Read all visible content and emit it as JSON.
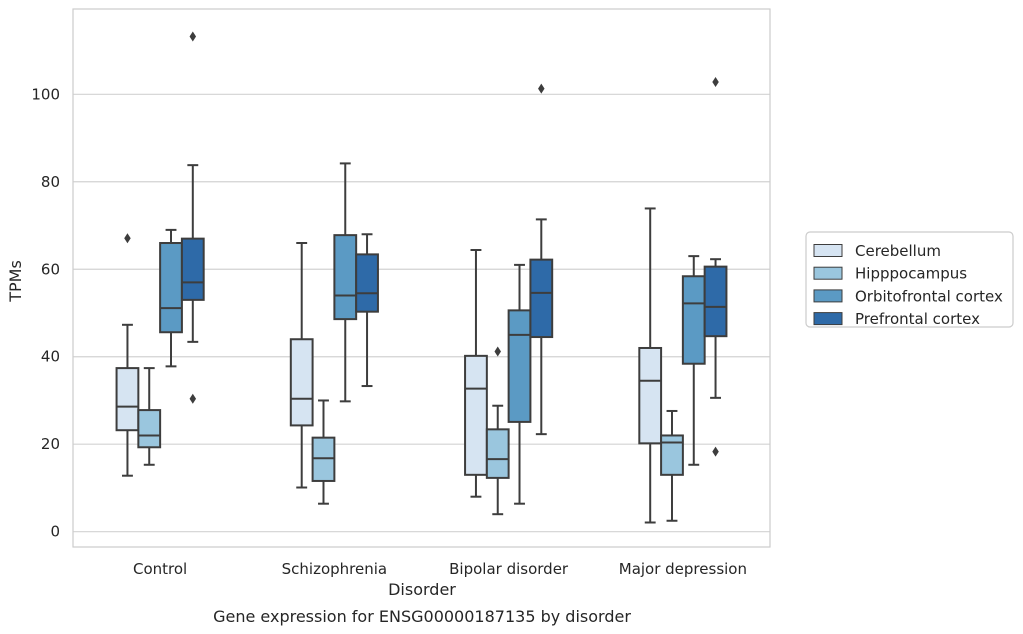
{
  "chart_data": {
    "type": "box",
    "title": "",
    "caption": "Gene expression for ENSG00000187135 by disorder",
    "xlabel": "Disorder",
    "ylabel": "TPMs",
    "ylim": [
      -3.5,
      119.5
    ],
    "yticks": [
      0,
      20,
      40,
      60,
      80,
      100
    ],
    "grid": "horizontal",
    "legend_position": "right-center",
    "categories": [
      "Control",
      "Schizophrenia",
      "Bipolar disorder",
      "Major depression"
    ],
    "series": [
      {
        "name": "Cerebellum",
        "color": "#d6e4f2",
        "boxes": [
          {
            "whisker_low": 12.8,
            "q1": 23.2,
            "median": 28.6,
            "q3": 37.4,
            "whisker_high": 47.3,
            "outliers": [
              67.1
            ]
          },
          {
            "whisker_low": 10.1,
            "q1": 24.3,
            "median": 30.4,
            "q3": 44.0,
            "whisker_high": 66.0,
            "outliers": []
          },
          {
            "whisker_low": 8.0,
            "q1": 13.0,
            "median": 32.7,
            "q3": 40.2,
            "whisker_high": 64.4,
            "outliers": []
          },
          {
            "whisker_low": 2.1,
            "q1": 20.2,
            "median": 34.5,
            "q3": 42.0,
            "whisker_high": 73.9,
            "outliers": []
          }
        ]
      },
      {
        "name": "Hipppocampus",
        "color": "#9ac6de",
        "boxes": [
          {
            "whisker_low": 15.3,
            "q1": 19.3,
            "median": 22.0,
            "q3": 27.8,
            "whisker_high": 37.4,
            "outliers": []
          },
          {
            "whisker_low": 6.4,
            "q1": 11.6,
            "median": 16.8,
            "q3": 21.5,
            "whisker_high": 30.0,
            "outliers": []
          },
          {
            "whisker_low": 4.0,
            "q1": 12.3,
            "median": 16.6,
            "q3": 23.4,
            "whisker_high": 28.8,
            "outliers": [
              41.2
            ]
          },
          {
            "whisker_low": 2.5,
            "q1": 13.0,
            "median": 20.4,
            "q3": 22.0,
            "whisker_high": 27.6,
            "outliers": []
          }
        ]
      },
      {
        "name": "Orbitofrontal cortex",
        "color": "#5b9ac4",
        "boxes": [
          {
            "whisker_low": 37.8,
            "q1": 45.6,
            "median": 51.1,
            "q3": 66.0,
            "whisker_high": 69.0,
            "outliers": []
          },
          {
            "whisker_low": 29.8,
            "q1": 48.6,
            "median": 54.0,
            "q3": 67.8,
            "whisker_high": 84.2,
            "outliers": []
          },
          {
            "whisker_low": 6.4,
            "q1": 25.1,
            "median": 45.0,
            "q3": 50.6,
            "whisker_high": 61.0,
            "outliers": []
          },
          {
            "whisker_low": 15.3,
            "q1": 38.4,
            "median": 52.2,
            "q3": 58.4,
            "whisker_high": 63.0,
            "outliers": []
          }
        ]
      },
      {
        "name": "Prefrontal cortex",
        "color": "#2e6aa8",
        "boxes": [
          {
            "whisker_low": 43.4,
            "q1": 53.0,
            "median": 57.0,
            "q3": 67.0,
            "whisker_high": 83.8,
            "outliers": [
              113.2,
              30.4
            ]
          },
          {
            "whisker_low": 33.3,
            "q1": 50.3,
            "median": 54.5,
            "q3": 63.4,
            "whisker_high": 68.0,
            "outliers": []
          },
          {
            "whisker_low": 22.3,
            "q1": 44.5,
            "median": 54.6,
            "q3": 62.2,
            "whisker_high": 71.4,
            "outliers": [
              101.3
            ]
          },
          {
            "whisker_low": 30.6,
            "q1": 44.7,
            "median": 51.4,
            "q3": 60.6,
            "whisker_high": 62.3,
            "outliers": [
              102.8,
              18.3
            ]
          }
        ]
      }
    ]
  }
}
